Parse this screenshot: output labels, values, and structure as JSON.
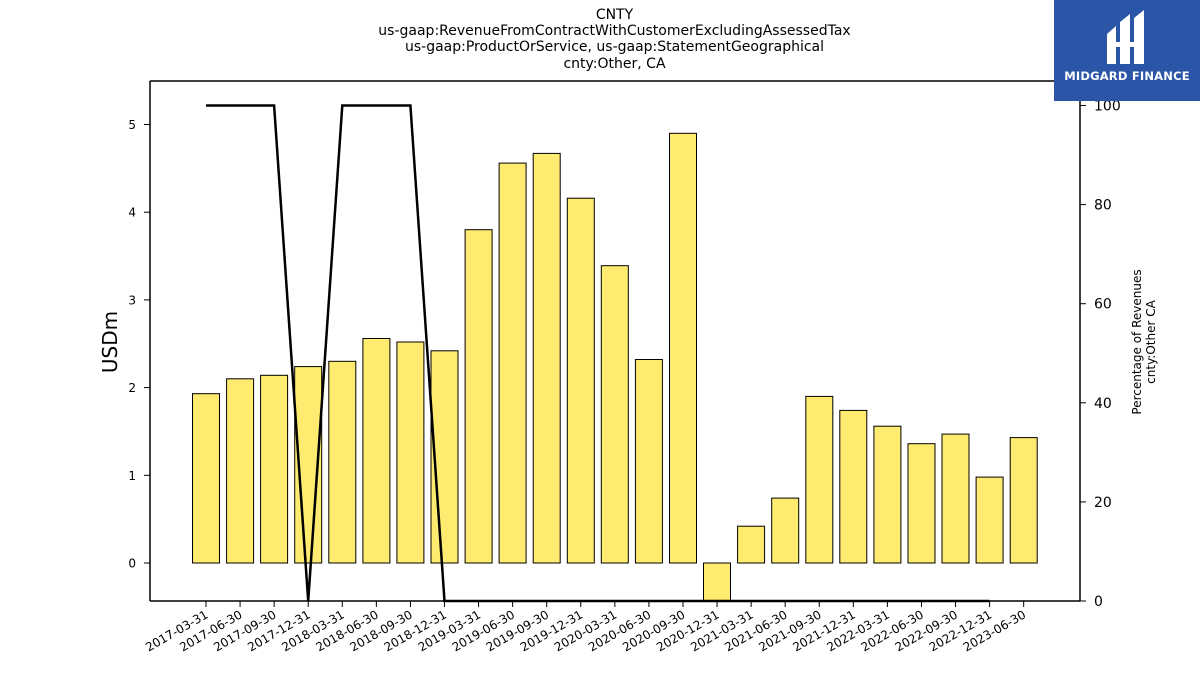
{
  "chart_data": {
    "type": "bar",
    "title_lines": [
      "CNTY",
      "us-gaap:RevenueFromContractWithCustomerExcludingAssessedTax",
      "us-gaap:ProductOrService, us-gaap:StatementGeographical",
      "cnty:Other, CA"
    ],
    "ylabel": "USDm",
    "y2label_lines": [
      "Percentage of Revenues",
      "cnty:Other CA"
    ],
    "categories": [
      "2017-03-31",
      "2017-06-30",
      "2017-09-30",
      "2017-12-31",
      "2018-03-31",
      "2018-06-30",
      "2018-09-30",
      "2018-12-31",
      "2019-03-31",
      "2019-06-30",
      "2019-09-30",
      "2019-12-31",
      "2020-03-31",
      "2020-06-30",
      "2020-09-30",
      "2020-12-31",
      "2021-03-31",
      "2021-06-30",
      "2021-09-30",
      "2021-12-31",
      "2022-03-31",
      "2022-06-30",
      "2022-09-30",
      "2022-12-31",
      "2023-06-30"
    ],
    "bar_values": [
      1.93,
      2.1,
      2.14,
      2.24,
      2.3,
      2.56,
      2.52,
      2.42,
      3.8,
      4.56,
      4.67,
      4.16,
      3.39,
      2.32,
      4.9,
      -0.43,
      0.42,
      0.74,
      1.9,
      1.74,
      1.56,
      1.36,
      1.47,
      0.98,
      1.43
    ],
    "line_categories": [
      "2017-03-31",
      "2017-06-30",
      "2017-09-30",
      "2017-12-31",
      "2018-03-31",
      "2018-06-30",
      "2018-09-30",
      "2018-12-31",
      "2019-03-31",
      "2019-06-30",
      "2019-09-30",
      "2019-12-31",
      "2020-03-31",
      "2020-06-30",
      "2020-09-30",
      "2020-12-31",
      "2021-03-31",
      "2021-06-30",
      "2021-09-30",
      "2021-12-31",
      "2022-03-31",
      "2022-06-30",
      "2022-09-30",
      "2022-12-31"
    ],
    "line_values": [
      100,
      100,
      100,
      0,
      100,
      100,
      100,
      0,
      0,
      0,
      0,
      0,
      0,
      0,
      0,
      0,
      0,
      0,
      0,
      0,
      0,
      0,
      0,
      0
    ],
    "ylim": [
      -0.43,
      5.48
    ],
    "y_ticks": [
      0,
      1,
      2,
      3,
      4,
      5
    ],
    "y2lim": [
      0,
      100
    ],
    "y2_ticks": [
      0,
      20,
      40,
      60,
      80,
      100
    ],
    "bar_color": "#ffeb70",
    "line_color": "#000000",
    "grid": false
  },
  "logo": {
    "text": "MIDGARD FINANCE",
    "bg_color": "#2b55a6"
  }
}
